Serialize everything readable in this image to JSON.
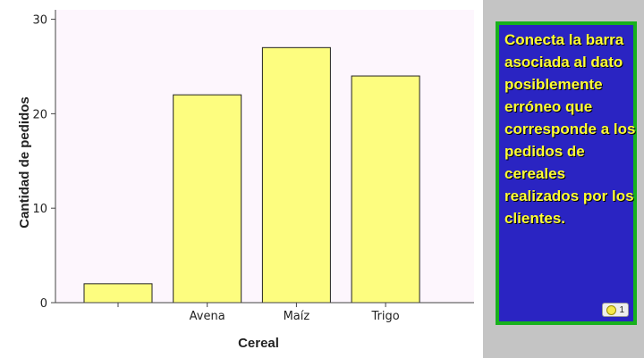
{
  "chart_data": {
    "type": "bar",
    "categories": [
      "",
      "Avena",
      "Maíz",
      "Trigo"
    ],
    "values": [
      2,
      22,
      27,
      24
    ],
    "xlabel": "Cereal",
    "ylabel": "Cantidad de pedidos",
    "ylim": [
      0,
      31
    ],
    "yticks": [
      0,
      10,
      20,
      30
    ],
    "grid": false,
    "plot_background": "#fdf6fd",
    "bar_color": "#fdfd7f",
    "bar_edge_color": "#222222"
  },
  "question": {
    "text": "Conecta la barra asociada al dato posiblemente erróneo que corresponde a los pedidos de cereales realizados por los clientes.",
    "points": "1",
    "box_color": "#2a24c2",
    "border_color": "#17b11d",
    "text_color": "#ffff33"
  }
}
